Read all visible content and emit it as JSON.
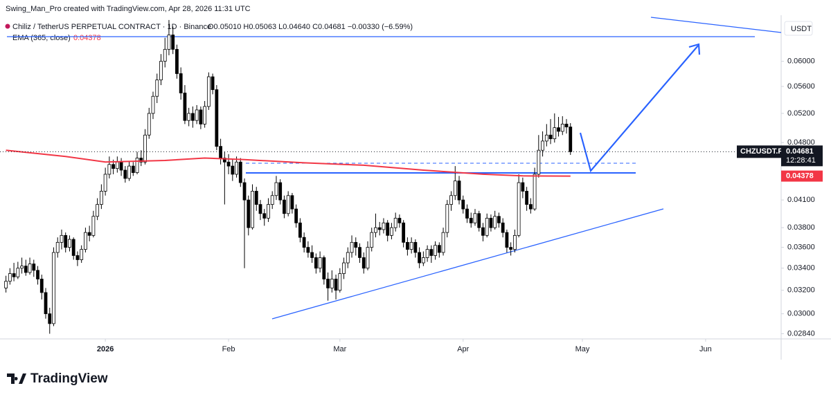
{
  "watermark": "Swing_Man_Pro created with TradingView.com, Apr 28, 2026 11:31 UTC",
  "chart_data": {
    "type": "candlestick",
    "title": "Chiliz / TetherUS PERPETUAL CONTRACT · 1D · Binance",
    "ohlc_summary": "O0.05010 H0.05063 L0.04640 C0.04681 −0.00330 (−6.59%)",
    "currency": "USDT",
    "symbol": "CHZUSDT.P",
    "countdown": "12:28:41",
    "log_scale": true,
    "grid": false,
    "up_color": "#ffffff",
    "down_color": "#000000",
    "border_color": "#000000",
    "ylim": [
      0.028,
      0.0677
    ],
    "yticks": [
      {
        "value": 0.0284,
        "label": "0.02840"
      },
      {
        "value": 0.03,
        "label": "0.03000"
      },
      {
        "value": 0.032,
        "label": "0.03200"
      },
      {
        "value": 0.034,
        "label": "0.03400"
      },
      {
        "value": 0.036,
        "label": "0.03600"
      },
      {
        "value": 0.038,
        "label": "0.03800"
      },
      {
        "value": 0.041,
        "label": "0.04100"
      },
      {
        "value": 0.048,
        "label": "0.04800"
      },
      {
        "value": 0.052,
        "label": "0.05200"
      },
      {
        "value": 0.056,
        "label": "0.05600"
      },
      {
        "value": 0.06,
        "label": "0.06000"
      }
    ],
    "xlim": [
      -1.5,
      195
    ],
    "xticks": [
      {
        "value": 25,
        "label": "2026"
      },
      {
        "value": 56,
        "label": "Feb"
      },
      {
        "value": 84,
        "label": "Mar"
      },
      {
        "value": 115,
        "label": "Apr"
      },
      {
        "value": 145,
        "label": "May"
      },
      {
        "value": 176,
        "label": "Jun"
      }
    ],
    "ohlc": [
      [
        0.0322,
        0.0333,
        0.0318,
        0.0328
      ],
      [
        0.0328,
        0.034,
        0.0325,
        0.0335
      ],
      [
        0.0335,
        0.0345,
        0.0328,
        0.0332
      ],
      [
        0.0332,
        0.0346,
        0.033,
        0.034
      ],
      [
        0.034,
        0.035,
        0.0335,
        0.0342
      ],
      [
        0.0342,
        0.0348,
        0.0333,
        0.0336
      ],
      [
        0.0336,
        0.035,
        0.0334,
        0.0344
      ],
      [
        0.0344,
        0.0348,
        0.0332,
        0.0338
      ],
      [
        0.0338,
        0.0342,
        0.0325,
        0.033
      ],
      [
        0.033,
        0.0334,
        0.0312,
        0.0318
      ],
      [
        0.0318,
        0.0322,
        0.0296,
        0.03
      ],
      [
        0.03,
        0.0305,
        0.0284,
        0.0292
      ],
      [
        0.0292,
        0.036,
        0.029,
        0.0355
      ],
      [
        0.0355,
        0.037,
        0.035,
        0.0365
      ],
      [
        0.0365,
        0.0378,
        0.0358,
        0.0372
      ],
      [
        0.0372,
        0.0375,
        0.0355,
        0.036
      ],
      [
        0.036,
        0.0372,
        0.0356,
        0.0368
      ],
      [
        0.0368,
        0.037,
        0.0348,
        0.0352
      ],
      [
        0.0352,
        0.0356,
        0.0342,
        0.0348
      ],
      [
        0.0348,
        0.0362,
        0.0345,
        0.0358
      ],
      [
        0.0358,
        0.038,
        0.0355,
        0.0375
      ],
      [
        0.0375,
        0.0382,
        0.0366,
        0.0372
      ],
      [
        0.0372,
        0.0398,
        0.037,
        0.0392
      ],
      [
        0.0392,
        0.0412,
        0.0388,
        0.0405
      ],
      [
        0.0405,
        0.0428,
        0.04,
        0.042
      ],
      [
        0.042,
        0.0448,
        0.0415,
        0.044
      ],
      [
        0.044,
        0.0462,
        0.0435,
        0.0452
      ],
      [
        0.0452,
        0.0458,
        0.044,
        0.0447
      ],
      [
        0.0447,
        0.0462,
        0.0442,
        0.0455
      ],
      [
        0.0455,
        0.046,
        0.0438,
        0.0445
      ],
      [
        0.0445,
        0.045,
        0.043,
        0.0435
      ],
      [
        0.0435,
        0.0456,
        0.0432,
        0.045
      ],
      [
        0.045,
        0.0455,
        0.0438,
        0.0442
      ],
      [
        0.0442,
        0.0468,
        0.044,
        0.046
      ],
      [
        0.046,
        0.047,
        0.045,
        0.0455
      ],
      [
        0.0455,
        0.0498,
        0.0452,
        0.049
      ],
      [
        0.049,
        0.0528,
        0.0485,
        0.052
      ],
      [
        0.052,
        0.0552,
        0.0512,
        0.0545
      ],
      [
        0.0545,
        0.058,
        0.0535,
        0.057
      ],
      [
        0.057,
        0.0612,
        0.0562,
        0.06
      ],
      [
        0.06,
        0.064,
        0.059,
        0.062
      ],
      [
        0.062,
        0.0672,
        0.061,
        0.0645
      ],
      [
        0.0645,
        0.066,
        0.0612,
        0.062
      ],
      [
        0.062,
        0.0628,
        0.0572,
        0.058
      ],
      [
        0.058,
        0.059,
        0.054,
        0.055
      ],
      [
        0.055,
        0.0562,
        0.0505,
        0.051
      ],
      [
        0.051,
        0.0528,
        0.0502,
        0.052
      ],
      [
        0.052,
        0.053,
        0.05,
        0.051
      ],
      [
        0.051,
        0.0532,
        0.0505,
        0.0525
      ],
      [
        0.0525,
        0.053,
        0.0498,
        0.0505
      ],
      [
        0.0505,
        0.0538,
        0.05,
        0.053
      ],
      [
        0.053,
        0.0582,
        0.0525,
        0.0575
      ],
      [
        0.0575,
        0.058,
        0.0548,
        0.0555
      ],
      [
        0.0555,
        0.0562,
        0.047,
        0.0475
      ],
      [
        0.0475,
        0.0485,
        0.0452,
        0.046
      ],
      [
        0.046,
        0.0468,
        0.0405,
        0.0455
      ],
      [
        0.0455,
        0.0465,
        0.044,
        0.045
      ],
      [
        0.045,
        0.0458,
        0.0432,
        0.044
      ],
      [
        0.044,
        0.0462,
        0.0436,
        0.0455
      ],
      [
        0.0455,
        0.046,
        0.0425,
        0.043
      ],
      [
        0.043,
        0.0435,
        0.034,
        0.041
      ],
      [
        0.041,
        0.0415,
        0.0372,
        0.038
      ],
      [
        0.038,
        0.0428,
        0.0378,
        0.042
      ],
      [
        0.042,
        0.0425,
        0.0398,
        0.0405
      ],
      [
        0.0405,
        0.041,
        0.0388,
        0.0395
      ],
      [
        0.0395,
        0.04,
        0.0382,
        0.039
      ],
      [
        0.039,
        0.0412,
        0.0386,
        0.0405
      ],
      [
        0.0405,
        0.042,
        0.04,
        0.0415
      ],
      [
        0.0415,
        0.0438,
        0.041,
        0.043
      ],
      [
        0.043,
        0.0434,
        0.0405,
        0.041
      ],
      [
        0.041,
        0.0415,
        0.039,
        0.0395
      ],
      [
        0.0395,
        0.042,
        0.0392,
        0.0415
      ],
      [
        0.0415,
        0.0418,
        0.0395,
        0.04
      ],
      [
        0.04,
        0.0405,
        0.038,
        0.0385
      ],
      [
        0.0385,
        0.039,
        0.0365,
        0.037
      ],
      [
        0.037,
        0.0375,
        0.0355,
        0.036
      ],
      [
        0.036,
        0.0366,
        0.035,
        0.0355
      ],
      [
        0.0355,
        0.0362,
        0.0345,
        0.035
      ],
      [
        0.035,
        0.0354,
        0.0335,
        0.034
      ],
      [
        0.034,
        0.0356,
        0.0336,
        0.035
      ],
      [
        0.035,
        0.0352,
        0.0325,
        0.033
      ],
      [
        0.033,
        0.0336,
        0.0311,
        0.0322
      ],
      [
        0.0322,
        0.0338,
        0.0318,
        0.033
      ],
      [
        0.033,
        0.0334,
        0.0312,
        0.032
      ],
      [
        0.032,
        0.034,
        0.0318,
        0.0335
      ],
      [
        0.0335,
        0.035,
        0.033,
        0.0345
      ],
      [
        0.0345,
        0.036,
        0.034,
        0.0355
      ],
      [
        0.0355,
        0.0372,
        0.035,
        0.0365
      ],
      [
        0.0365,
        0.037,
        0.0352,
        0.036
      ],
      [
        0.036,
        0.0364,
        0.0345,
        0.035
      ],
      [
        0.035,
        0.0355,
        0.0335,
        0.034
      ],
      [
        0.034,
        0.0366,
        0.0338,
        0.036
      ],
      [
        0.036,
        0.038,
        0.0356,
        0.0375
      ],
      [
        0.0375,
        0.0395,
        0.037,
        0.038
      ],
      [
        0.038,
        0.0386,
        0.0372,
        0.0378
      ],
      [
        0.0378,
        0.039,
        0.0374,
        0.0385
      ],
      [
        0.0385,
        0.0388,
        0.0366,
        0.0372
      ],
      [
        0.0372,
        0.0385,
        0.0368,
        0.038
      ],
      [
        0.038,
        0.0396,
        0.0376,
        0.039
      ],
      [
        0.039,
        0.0394,
        0.038,
        0.0385
      ],
      [
        0.0385,
        0.0388,
        0.036,
        0.0365
      ],
      [
        0.0365,
        0.037,
        0.0352,
        0.0358
      ],
      [
        0.0358,
        0.037,
        0.0354,
        0.0365
      ],
      [
        0.0365,
        0.0368,
        0.035,
        0.0355
      ],
      [
        0.0355,
        0.036,
        0.034,
        0.0345
      ],
      [
        0.0345,
        0.0356,
        0.0342,
        0.035
      ],
      [
        0.035,
        0.0362,
        0.0346,
        0.0358
      ],
      [
        0.0358,
        0.0362,
        0.0345,
        0.0352
      ],
      [
        0.0352,
        0.0366,
        0.0348,
        0.0362
      ],
      [
        0.0362,
        0.0365,
        0.035,
        0.0355
      ],
      [
        0.0355,
        0.038,
        0.0352,
        0.0375
      ],
      [
        0.0375,
        0.041,
        0.037,
        0.0405
      ],
      [
        0.0405,
        0.042,
        0.0398,
        0.0415
      ],
      [
        0.0415,
        0.045,
        0.041,
        0.0432
      ],
      [
        0.0432,
        0.0438,
        0.0405,
        0.041
      ],
      [
        0.041,
        0.0415,
        0.0395,
        0.04
      ],
      [
        0.04,
        0.0405,
        0.0385,
        0.039
      ],
      [
        0.039,
        0.0396,
        0.038,
        0.0385
      ],
      [
        0.0385,
        0.04,
        0.0382,
        0.0395
      ],
      [
        0.0395,
        0.0398,
        0.0376,
        0.038
      ],
      [
        0.038,
        0.0385,
        0.0366,
        0.0372
      ],
      [
        0.0372,
        0.0395,
        0.037,
        0.039
      ],
      [
        0.039,
        0.0394,
        0.0376,
        0.038
      ],
      [
        0.038,
        0.0398,
        0.0378,
        0.0392
      ],
      [
        0.0392,
        0.0396,
        0.038,
        0.0385
      ],
      [
        0.0385,
        0.039,
        0.037,
        0.0375
      ],
      [
        0.0375,
        0.0378,
        0.0355,
        0.036
      ],
      [
        0.036,
        0.0365,
        0.0352,
        0.0358
      ],
      [
        0.0358,
        0.0378,
        0.0355,
        0.0372
      ],
      [
        0.0372,
        0.044,
        0.037,
        0.043
      ],
      [
        0.043,
        0.0436,
        0.0412,
        0.042
      ],
      [
        0.042,
        0.0425,
        0.0398,
        0.0405
      ],
      [
        0.0405,
        0.0412,
        0.0395,
        0.04
      ],
      [
        0.04,
        0.0448,
        0.0398,
        0.044
      ],
      [
        0.044,
        0.049,
        0.0436,
        0.047
      ],
      [
        0.047,
        0.0495,
        0.0462,
        0.0482
      ],
      [
        0.0482,
        0.0505,
        0.0475,
        0.049
      ],
      [
        0.049,
        0.0512,
        0.0478,
        0.0485
      ],
      [
        0.0485,
        0.052,
        0.048,
        0.05
      ],
      [
        0.05,
        0.0515,
        0.0488,
        0.0495
      ],
      [
        0.0495,
        0.0516,
        0.049,
        0.0505
      ],
      [
        0.0505,
        0.0512,
        0.0492,
        0.0501
      ],
      [
        0.0501,
        0.05063,
        0.0464,
        0.04681
      ]
    ],
    "ema": {
      "name": "EMA (365, close)",
      "color": "#f23645",
      "x": [
        0,
        15,
        25,
        40,
        50,
        60,
        75,
        90,
        105,
        120,
        130,
        142
      ],
      "values": [
        0.047,
        0.0462,
        0.0455,
        0.0457,
        0.046,
        0.0458,
        0.0454,
        0.0451,
        0.0445,
        0.044,
        0.0438,
        0.04378
      ]
    }
  },
  "footer": {
    "brand": "TradingView"
  }
}
